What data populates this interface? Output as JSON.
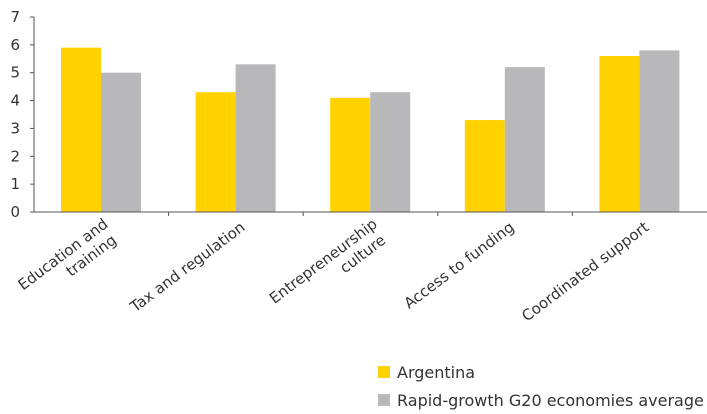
{
  "chart_data": {
    "type": "bar",
    "categories": [
      [
        "Education and",
        "training"
      ],
      [
        "Tax and regulation"
      ],
      [
        "Entrepreneurship",
        "culture"
      ],
      [
        "Access to  funding"
      ],
      [
        "Coordinated support"
      ]
    ],
    "series": [
      {
        "name": "Argentina",
        "color": "#FFD200",
        "values": [
          5.9,
          4.3,
          4.1,
          3.3,
          5.6
        ]
      },
      {
        "name": "Rapid-growth G20 economies average",
        "color": "#B8B8BA",
        "values": [
          5.0,
          5.3,
          4.3,
          5.2,
          5.8
        ]
      }
    ],
    "ylim": [
      0,
      7
    ],
    "yticks": [
      "0",
      "1",
      "2",
      "3",
      "4",
      "5",
      "6",
      "7"
    ],
    "title": "",
    "xlabel": "",
    "ylabel": "",
    "legend_position": "bottom-right",
    "grid": false
  }
}
